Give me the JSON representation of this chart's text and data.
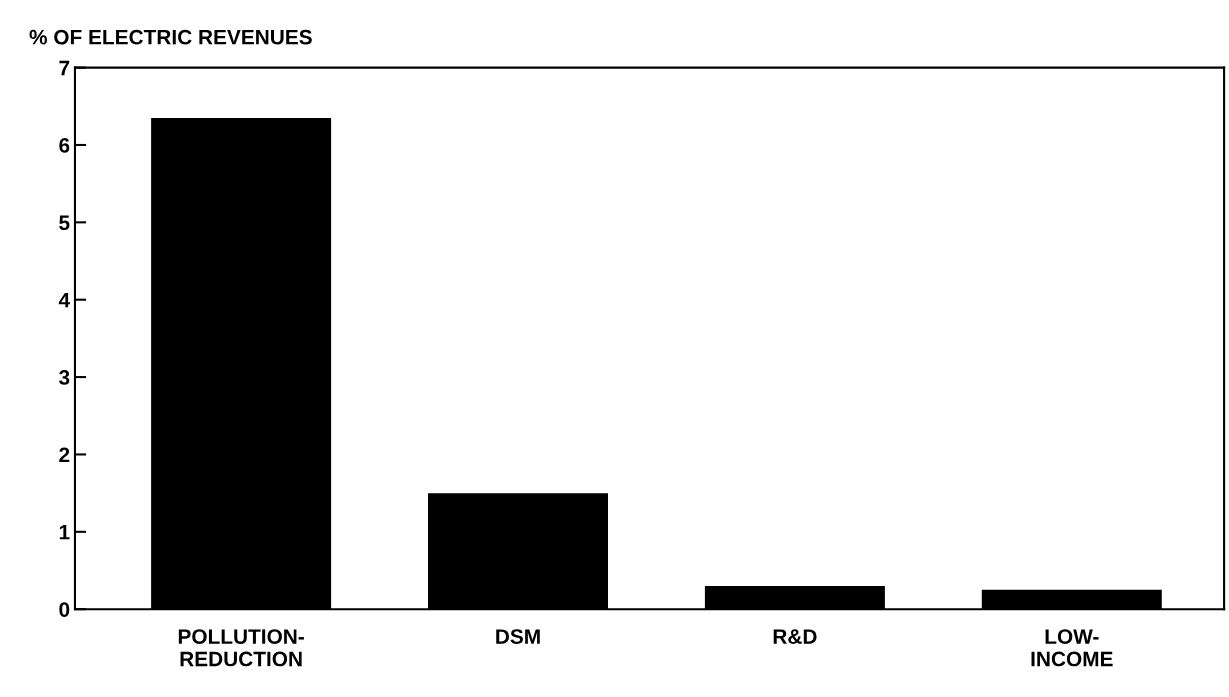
{
  "chart_data": {
    "type": "bar",
    "ylabel": "% OF ELECTRIC REVENUES",
    "categories": [
      "POLLUTION-\nREDUCTION",
      "DSM",
      "R&D",
      "LOW-\nINCOME"
    ],
    "values": [
      6.35,
      1.5,
      0.3,
      0.25
    ],
    "color": "#000000",
    "ylim": [
      0,
      7
    ],
    "yticks": [
      0,
      1,
      2,
      3,
      4,
      5,
      6,
      7
    ],
    "grid": false
  }
}
